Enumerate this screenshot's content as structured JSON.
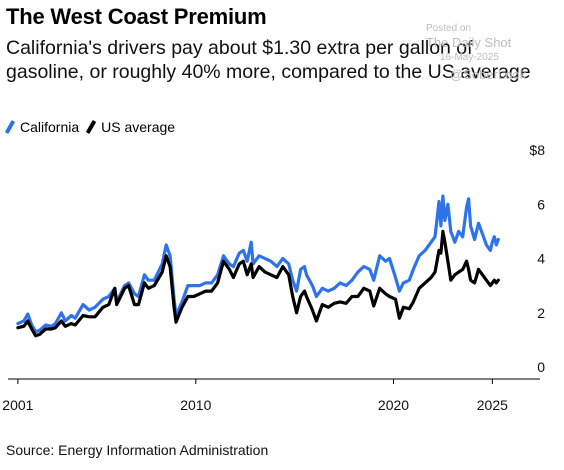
{
  "watermark": {
    "posted_on": "Posted on",
    "brand": "The Daily Shot",
    "date": "16-May-2025",
    "handle": "@SoberLook"
  },
  "source": "Source: Energy Information Administration",
  "colors": {
    "california": "#2f73ea",
    "us_average": "#000000",
    "axis": "#000000"
  },
  "chart_data": {
    "type": "line",
    "title": "The West Coast Premium",
    "subtitle": "California's drivers pay about $1.30 extra per gallon of gasoline, or roughly 40% more, compared to the US average",
    "y_unit_label": "$8",
    "ylim": [
      0,
      8
    ],
    "y_ticks": [
      0,
      2,
      4,
      6,
      8
    ],
    "y_tick_labels": [
      "0",
      "2",
      "4",
      "6",
      "$8"
    ],
    "xlim": [
      2000.5,
      2026.5
    ],
    "x_ticks": [
      2001,
      2010,
      2020,
      2025
    ],
    "x_tick_labels": [
      "2001",
      "2010",
      "2020",
      "2025"
    ],
    "grid": false,
    "legend_position": "top-left",
    "series": [
      {
        "name": "California",
        "color": "#2f73ea",
        "points": [
          [
            2001.0,
            1.6
          ],
          [
            2001.3,
            1.7
          ],
          [
            2001.5,
            1.95
          ],
          [
            2001.7,
            1.55
          ],
          [
            2001.9,
            1.3
          ],
          [
            2002.1,
            1.35
          ],
          [
            2002.4,
            1.55
          ],
          [
            2002.7,
            1.5
          ],
          [
            2002.9,
            1.6
          ],
          [
            2003.2,
            2.0
          ],
          [
            2003.4,
            1.7
          ],
          [
            2003.7,
            1.9
          ],
          [
            2003.9,
            1.8
          ],
          [
            2004.3,
            2.3
          ],
          [
            2004.6,
            2.1
          ],
          [
            2004.9,
            2.2
          ],
          [
            2005.3,
            2.5
          ],
          [
            2005.6,
            2.6
          ],
          [
            2005.9,
            2.9
          ],
          [
            2006.0,
            2.4
          ],
          [
            2006.4,
            3.0
          ],
          [
            2006.6,
            3.1
          ],
          [
            2006.9,
            2.7
          ],
          [
            2007.1,
            2.6
          ],
          [
            2007.4,
            3.4
          ],
          [
            2007.6,
            3.2
          ],
          [
            2007.9,
            3.2
          ],
          [
            2008.3,
            3.8
          ],
          [
            2008.5,
            4.5
          ],
          [
            2008.7,
            4.1
          ],
          [
            2008.9,
            2.5
          ],
          [
            2009.0,
            1.9
          ],
          [
            2009.3,
            2.4
          ],
          [
            2009.6,
            3.0
          ],
          [
            2009.9,
            3.0
          ],
          [
            2010.2,
            3.0
          ],
          [
            2010.5,
            3.1
          ],
          [
            2010.8,
            3.1
          ],
          [
            2011.1,
            3.4
          ],
          [
            2011.4,
            4.1
          ],
          [
            2011.7,
            3.8
          ],
          [
            2011.9,
            3.7
          ],
          [
            2012.2,
            4.2
          ],
          [
            2012.4,
            4.3
          ],
          [
            2012.6,
            3.9
          ],
          [
            2012.8,
            4.6
          ],
          [
            2012.9,
            3.8
          ],
          [
            2013.2,
            4.1
          ],
          [
            2013.5,
            4.0
          ],
          [
            2013.8,
            3.9
          ],
          [
            2014.1,
            3.7
          ],
          [
            2014.4,
            4.0
          ],
          [
            2014.7,
            3.8
          ],
          [
            2014.9,
            3.2
          ],
          [
            2015.1,
            2.8
          ],
          [
            2015.3,
            3.6
          ],
          [
            2015.5,
            3.7
          ],
          [
            2015.6,
            3.4
          ],
          [
            2015.9,
            3.0
          ],
          [
            2016.1,
            2.6
          ],
          [
            2016.4,
            2.9
          ],
          [
            2016.7,
            2.8
          ],
          [
            2017.0,
            2.9
          ],
          [
            2017.3,
            3.1
          ],
          [
            2017.6,
            3.0
          ],
          [
            2017.9,
            3.2
          ],
          [
            2018.2,
            3.5
          ],
          [
            2018.5,
            3.7
          ],
          [
            2018.8,
            3.6
          ],
          [
            2019.0,
            3.2
          ],
          [
            2019.3,
            4.1
          ],
          [
            2019.6,
            3.9
          ],
          [
            2019.8,
            4.0
          ],
          [
            2020.1,
            3.3
          ],
          [
            2020.3,
            2.8
          ],
          [
            2020.5,
            3.1
          ],
          [
            2020.8,
            3.2
          ],
          [
            2021.0,
            3.6
          ],
          [
            2021.3,
            4.1
          ],
          [
            2021.6,
            4.3
          ],
          [
            2021.9,
            4.6
          ],
          [
            2022.1,
            4.8
          ],
          [
            2022.3,
            6.1
          ],
          [
            2022.4,
            5.2
          ],
          [
            2022.5,
            6.3
          ],
          [
            2022.6,
            5.4
          ],
          [
            2022.75,
            6.0
          ],
          [
            2022.9,
            5.0
          ],
          [
            2023.1,
            4.6
          ],
          [
            2023.3,
            5.0
          ],
          [
            2023.5,
            4.8
          ],
          [
            2023.7,
            5.9
          ],
          [
            2023.8,
            6.2
          ],
          [
            2023.9,
            5.2
          ],
          [
            2024.1,
            4.7
          ],
          [
            2024.3,
            5.3
          ],
          [
            2024.5,
            4.9
          ],
          [
            2024.7,
            4.5
          ],
          [
            2024.9,
            4.3
          ],
          [
            2025.0,
            4.6
          ],
          [
            2025.1,
            4.8
          ],
          [
            2025.2,
            4.5
          ],
          [
            2025.3,
            4.7
          ]
        ]
      },
      {
        "name": "US average",
        "color": "#000000",
        "points": [
          [
            2001.0,
            1.45
          ],
          [
            2001.3,
            1.5
          ],
          [
            2001.5,
            1.7
          ],
          [
            2001.7,
            1.4
          ],
          [
            2001.9,
            1.15
          ],
          [
            2002.1,
            1.2
          ],
          [
            2002.4,
            1.4
          ],
          [
            2002.7,
            1.4
          ],
          [
            2002.9,
            1.45
          ],
          [
            2003.2,
            1.7
          ],
          [
            2003.4,
            1.5
          ],
          [
            2003.7,
            1.6
          ],
          [
            2003.9,
            1.55
          ],
          [
            2004.3,
            1.9
          ],
          [
            2004.6,
            1.85
          ],
          [
            2004.9,
            1.85
          ],
          [
            2005.3,
            2.2
          ],
          [
            2005.6,
            2.3
          ],
          [
            2005.9,
            2.9
          ],
          [
            2006.0,
            2.3
          ],
          [
            2006.4,
            2.9
          ],
          [
            2006.6,
            3.0
          ],
          [
            2006.9,
            2.3
          ],
          [
            2007.1,
            2.3
          ],
          [
            2007.4,
            3.1
          ],
          [
            2007.6,
            2.9
          ],
          [
            2007.9,
            3.0
          ],
          [
            2008.3,
            3.5
          ],
          [
            2008.5,
            4.1
          ],
          [
            2008.7,
            3.7
          ],
          [
            2008.9,
            2.2
          ],
          [
            2009.0,
            1.65
          ],
          [
            2009.3,
            2.2
          ],
          [
            2009.6,
            2.6
          ],
          [
            2009.9,
            2.6
          ],
          [
            2010.2,
            2.7
          ],
          [
            2010.5,
            2.8
          ],
          [
            2010.8,
            2.8
          ],
          [
            2011.1,
            3.1
          ],
          [
            2011.4,
            3.9
          ],
          [
            2011.7,
            3.6
          ],
          [
            2011.9,
            3.3
          ],
          [
            2012.2,
            3.8
          ],
          [
            2012.4,
            3.9
          ],
          [
            2012.6,
            3.4
          ],
          [
            2012.8,
            3.8
          ],
          [
            2012.9,
            3.3
          ],
          [
            2013.2,
            3.7
          ],
          [
            2013.5,
            3.5
          ],
          [
            2013.8,
            3.4
          ],
          [
            2014.1,
            3.3
          ],
          [
            2014.4,
            3.7
          ],
          [
            2014.7,
            3.4
          ],
          [
            2014.9,
            2.6
          ],
          [
            2015.1,
            2.0
          ],
          [
            2015.3,
            2.6
          ],
          [
            2015.5,
            2.8
          ],
          [
            2015.6,
            2.6
          ],
          [
            2015.9,
            2.1
          ],
          [
            2016.1,
            1.7
          ],
          [
            2016.4,
            2.3
          ],
          [
            2016.7,
            2.2
          ],
          [
            2017.0,
            2.35
          ],
          [
            2017.3,
            2.4
          ],
          [
            2017.6,
            2.35
          ],
          [
            2017.9,
            2.6
          ],
          [
            2018.2,
            2.6
          ],
          [
            2018.5,
            2.9
          ],
          [
            2018.8,
            2.8
          ],
          [
            2019.0,
            2.25
          ],
          [
            2019.3,
            2.9
          ],
          [
            2019.6,
            2.7
          ],
          [
            2019.8,
            2.6
          ],
          [
            2020.1,
            2.5
          ],
          [
            2020.3,
            1.8
          ],
          [
            2020.5,
            2.2
          ],
          [
            2020.8,
            2.15
          ],
          [
            2021.0,
            2.4
          ],
          [
            2021.3,
            2.9
          ],
          [
            2021.6,
            3.1
          ],
          [
            2021.9,
            3.3
          ],
          [
            2022.1,
            3.5
          ],
          [
            2022.3,
            4.3
          ],
          [
            2022.4,
            4.2
          ],
          [
            2022.5,
            5.0
          ],
          [
            2022.6,
            4.6
          ],
          [
            2022.75,
            3.9
          ],
          [
            2022.9,
            3.2
          ],
          [
            2023.1,
            3.4
          ],
          [
            2023.3,
            3.5
          ],
          [
            2023.5,
            3.6
          ],
          [
            2023.7,
            3.9
          ],
          [
            2023.8,
            3.6
          ],
          [
            2023.9,
            3.2
          ],
          [
            2024.1,
            3.1
          ],
          [
            2024.3,
            3.6
          ],
          [
            2024.5,
            3.4
          ],
          [
            2024.7,
            3.2
          ],
          [
            2024.9,
            3.0
          ],
          [
            2025.0,
            3.1
          ],
          [
            2025.1,
            3.2
          ],
          [
            2025.2,
            3.1
          ],
          [
            2025.3,
            3.2
          ]
        ]
      }
    ]
  }
}
